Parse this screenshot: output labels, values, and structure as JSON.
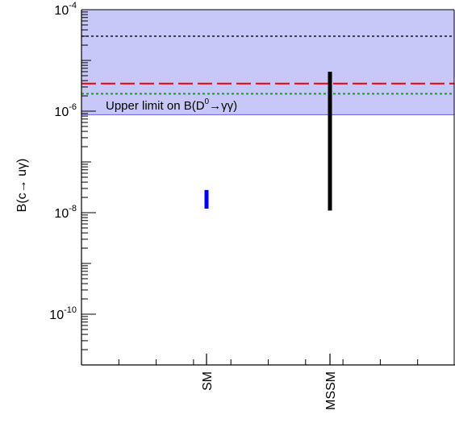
{
  "chart_data": {
    "type": "scatter",
    "ylabel": "B(c→ uγ)",
    "yscale": "log",
    "ylim_exponent": [
      -11,
      -4
    ],
    "ylim": [
      1e-11,
      0.0001
    ],
    "y_tick_labels": [
      {
        "exp": -4,
        "base": "10",
        "sup": "-4"
      },
      {
        "exp": -6,
        "base": "10",
        "sup": "-6"
      },
      {
        "exp": -8,
        "base": "10",
        "sup": "-8"
      },
      {
        "exp": -10,
        "base": "10",
        "sup": "-10"
      }
    ],
    "categories": [
      "SM",
      "MSSM"
    ],
    "x_minor_ticks": 9,
    "ranges": [
      {
        "name": "SM",
        "category": "SM",
        "low": 1.2e-08,
        "high": 2.8e-08,
        "color": "#0000ee"
      },
      {
        "name": "MSSM",
        "category": "MSSM",
        "low": 1.1e-08,
        "high": 6e-06,
        "color": "#000000"
      }
    ],
    "upper_limit_band": {
      "low": 8.5e-07,
      "high": 0.0001,
      "fill": "#c8c8f8",
      "edge": "#7070e0"
    },
    "reference_lines": [
      {
        "value": 3e-05,
        "color": "#000000",
        "style": "dotted-short"
      },
      {
        "value": 3.5e-06,
        "color": "#ee0000",
        "style": "long-dash"
      },
      {
        "value": 2.2e-06,
        "color": "#00aa00",
        "style": "dotted"
      }
    ],
    "annotation": {
      "prefix": "Upper limit on B(D",
      "sup": "0",
      "suffix": "→γγ)"
    },
    "colors": {
      "band": "#c8c8f8",
      "sm": "#0000ee",
      "mssm": "#000000",
      "red": "#ee0000",
      "green": "#00aa00"
    }
  }
}
